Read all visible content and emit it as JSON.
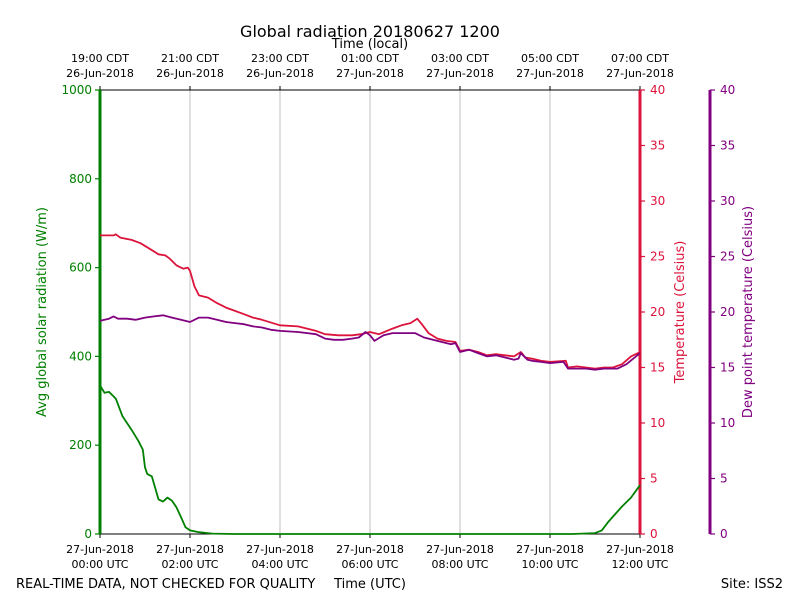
{
  "chart_data": {
    "type": "line",
    "title": "Global radiation 20180627 1200",
    "top_xlabel": "Time (local)",
    "xlabel": "Time (UTC)",
    "footer_left": "REAL-TIME DATA, NOT CHECKED FOR QUALITY",
    "footer_right": "Site: ISS2",
    "x_range_hours_utc": [
      0,
      12
    ],
    "bottom_ticks": [
      {
        "hour": 0,
        "line1": "27-Jun-2018",
        "line2": "00:00 UTC"
      },
      {
        "hour": 2,
        "line1": "27-Jun-2018",
        "line2": "02:00 UTC"
      },
      {
        "hour": 4,
        "line1": "27-Jun-2018",
        "line2": "04:00 UTC"
      },
      {
        "hour": 6,
        "line1": "27-Jun-2018",
        "line2": "06:00 UTC"
      },
      {
        "hour": 8,
        "line1": "27-Jun-2018",
        "line2": "08:00 UTC"
      },
      {
        "hour": 10,
        "line1": "27-Jun-2018",
        "line2": "10:00 UTC"
      },
      {
        "hour": 12,
        "line1": "27-Jun-2018",
        "line2": "12:00 UTC"
      }
    ],
    "top_ticks": [
      {
        "hour": 0,
        "line1": "19:00 CDT",
        "line2": "26-Jun-2018"
      },
      {
        "hour": 2,
        "line1": "21:00 CDT",
        "line2": "26-Jun-2018"
      },
      {
        "hour": 4,
        "line1": "23:00 CDT",
        "line2": "26-Jun-2018"
      },
      {
        "hour": 6,
        "line1": "01:00 CDT",
        "line2": "27-Jun-2018"
      },
      {
        "hour": 8,
        "line1": "03:00 CDT",
        "line2": "27-Jun-2018"
      },
      {
        "hour": 10,
        "line1": "05:00 CDT",
        "line2": "27-Jun-2018"
      },
      {
        "hour": 12,
        "line1": "07:00 CDT",
        "line2": "27-Jun-2018"
      }
    ],
    "grid": "vertical",
    "axes": {
      "radiation": {
        "label": "Avg global solar radiation (W/m)",
        "range": [
          0,
          1000
        ],
        "ticks": [
          0,
          200,
          400,
          600,
          800,
          1000
        ],
        "color": "#008000"
      },
      "temperature": {
        "label": "Temperature (Celsius)",
        "range": [
          0,
          40
        ],
        "ticks": [
          0,
          5,
          10,
          15,
          20,
          25,
          30,
          35,
          40
        ],
        "color": "#dc143c"
      },
      "dewpoint": {
        "label": "Dew point temperature (Celsius)",
        "range": [
          0,
          40
        ],
        "ticks": [
          0,
          5,
          10,
          15,
          20,
          25,
          30,
          35,
          40
        ],
        "color": "#800080"
      }
    },
    "series": [
      {
        "axis": "radiation",
        "color": "#008000",
        "points": [
          [
            0,
            335
          ],
          [
            0.1,
            318
          ],
          [
            0.2,
            320
          ],
          [
            0.35,
            305
          ],
          [
            0.5,
            265
          ],
          [
            0.7,
            235
          ],
          [
            0.85,
            210
          ],
          [
            0.95,
            190
          ],
          [
            1.0,
            150
          ],
          [
            1.05,
            135
          ],
          [
            1.15,
            130
          ],
          [
            1.25,
            95
          ],
          [
            1.3,
            78
          ],
          [
            1.4,
            73
          ],
          [
            1.5,
            82
          ],
          [
            1.6,
            75
          ],
          [
            1.7,
            60
          ],
          [
            1.8,
            38
          ],
          [
            1.9,
            15
          ],
          [
            2.0,
            8
          ],
          [
            2.2,
            4
          ],
          [
            2.5,
            1
          ],
          [
            3,
            0
          ],
          [
            10.5,
            0
          ],
          [
            11.0,
            2
          ],
          [
            11.15,
            8
          ],
          [
            11.3,
            28
          ],
          [
            11.45,
            45
          ],
          [
            11.6,
            62
          ],
          [
            11.8,
            82
          ],
          [
            12.0,
            110
          ]
        ]
      },
      {
        "axis": "temperature",
        "color": "#dc143c",
        "points": [
          [
            0,
            26.9
          ],
          [
            0.3,
            26.9
          ],
          [
            0.35,
            27.0
          ],
          [
            0.45,
            26.7
          ],
          [
            0.7,
            26.5
          ],
          [
            0.9,
            26.2
          ],
          [
            1.1,
            25.7
          ],
          [
            1.3,
            25.2
          ],
          [
            1.45,
            25.1
          ],
          [
            1.55,
            24.8
          ],
          [
            1.7,
            24.2
          ],
          [
            1.85,
            23.9
          ],
          [
            1.95,
            24.0
          ],
          [
            2.0,
            23.7
          ],
          [
            2.1,
            22.3
          ],
          [
            2.2,
            21.5
          ],
          [
            2.4,
            21.3
          ],
          [
            2.6,
            20.8
          ],
          [
            2.8,
            20.4
          ],
          [
            3.0,
            20.1
          ],
          [
            3.2,
            19.8
          ],
          [
            3.4,
            19.5
          ],
          [
            3.6,
            19.3
          ],
          [
            4.0,
            18.8
          ],
          [
            4.4,
            18.7
          ],
          [
            4.8,
            18.3
          ],
          [
            5.0,
            18.0
          ],
          [
            5.3,
            17.9
          ],
          [
            5.6,
            17.9
          ],
          [
            5.8,
            18.0
          ],
          [
            6.0,
            18.2
          ],
          [
            6.2,
            18.0
          ],
          [
            6.5,
            18.5
          ],
          [
            6.7,
            18.8
          ],
          [
            6.9,
            19.0
          ],
          [
            7.05,
            19.4
          ],
          [
            7.15,
            18.9
          ],
          [
            7.3,
            18.1
          ],
          [
            7.5,
            17.6
          ],
          [
            7.7,
            17.4
          ],
          [
            7.9,
            17.3
          ],
          [
            8.0,
            16.5
          ],
          [
            8.2,
            16.6
          ],
          [
            8.4,
            16.4
          ],
          [
            8.6,
            16.1
          ],
          [
            8.8,
            16.2
          ],
          [
            9.0,
            16.1
          ],
          [
            9.2,
            16.0
          ],
          [
            9.35,
            16.4
          ],
          [
            9.45,
            15.9
          ],
          [
            9.6,
            15.8
          ],
          [
            9.8,
            15.6
          ],
          [
            10.0,
            15.5
          ],
          [
            10.35,
            15.6
          ],
          [
            10.4,
            15.0
          ],
          [
            10.6,
            15.1
          ],
          [
            10.8,
            15.0
          ],
          [
            11.0,
            14.9
          ],
          [
            11.2,
            15.0
          ],
          [
            11.4,
            15.0
          ],
          [
            11.6,
            15.3
          ],
          [
            11.8,
            16.0
          ],
          [
            12.0,
            16.4
          ]
        ]
      },
      {
        "axis": "dewpoint",
        "color": "#800080",
        "points": [
          [
            0,
            19.2
          ],
          [
            0.1,
            19.3
          ],
          [
            0.2,
            19.4
          ],
          [
            0.3,
            19.6
          ],
          [
            0.4,
            19.4
          ],
          [
            0.6,
            19.4
          ],
          [
            0.8,
            19.3
          ],
          [
            1.0,
            19.5
          ],
          [
            1.2,
            19.6
          ],
          [
            1.4,
            19.7
          ],
          [
            1.6,
            19.5
          ],
          [
            1.8,
            19.3
          ],
          [
            2.0,
            19.1
          ],
          [
            2.2,
            19.5
          ],
          [
            2.4,
            19.5
          ],
          [
            2.6,
            19.3
          ],
          [
            2.8,
            19.1
          ],
          [
            3.0,
            19.0
          ],
          [
            3.2,
            18.9
          ],
          [
            3.4,
            18.7
          ],
          [
            3.6,
            18.6
          ],
          [
            3.8,
            18.4
          ],
          [
            4.0,
            18.3
          ],
          [
            4.4,
            18.2
          ],
          [
            4.8,
            18.0
          ],
          [
            5.0,
            17.6
          ],
          [
            5.2,
            17.5
          ],
          [
            5.4,
            17.5
          ],
          [
            5.6,
            17.6
          ],
          [
            5.75,
            17.7
          ],
          [
            5.9,
            18.2
          ],
          [
            6.0,
            17.9
          ],
          [
            6.1,
            17.4
          ],
          [
            6.3,
            17.9
          ],
          [
            6.5,
            18.1
          ],
          [
            6.8,
            18.1
          ],
          [
            7.0,
            18.1
          ],
          [
            7.2,
            17.7
          ],
          [
            7.4,
            17.5
          ],
          [
            7.6,
            17.3
          ],
          [
            7.8,
            17.1
          ],
          [
            7.9,
            17.2
          ],
          [
            8.0,
            16.4
          ],
          [
            8.2,
            16.6
          ],
          [
            8.4,
            16.3
          ],
          [
            8.6,
            16.0
          ],
          [
            8.8,
            16.1
          ],
          [
            9.0,
            15.9
          ],
          [
            9.2,
            15.7
          ],
          [
            9.3,
            15.8
          ],
          [
            9.35,
            16.3
          ],
          [
            9.5,
            15.7
          ],
          [
            9.6,
            15.6
          ],
          [
            9.8,
            15.5
          ],
          [
            10.0,
            15.4
          ],
          [
            10.3,
            15.5
          ],
          [
            10.4,
            14.9
          ],
          [
            10.6,
            14.9
          ],
          [
            10.8,
            14.9
          ],
          [
            11.0,
            14.8
          ],
          [
            11.2,
            14.9
          ],
          [
            11.5,
            14.9
          ],
          [
            11.7,
            15.3
          ],
          [
            12.0,
            16.3
          ]
        ]
      }
    ]
  }
}
